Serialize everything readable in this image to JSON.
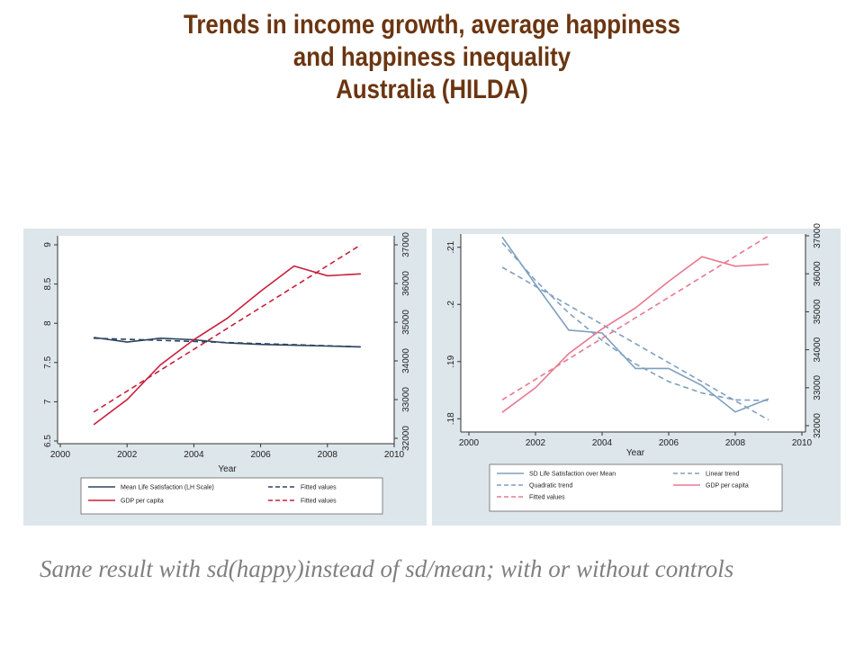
{
  "title": {
    "line1": "Trends in income growth, average happiness",
    "line2": "and happiness inequality",
    "line3": "Australia (HILDA)"
  },
  "caption": "Same result with sd(happy)instead of sd/mean; with or without controls",
  "colors": {
    "title": "#6b3510",
    "navy": "#2c4460",
    "crimson": "#c8203c",
    "steel": "#7f9fbf",
    "pink": "#e8788f",
    "panel": "#dde6eb",
    "caption": "#7f7f7f"
  },
  "chart_data": [
    {
      "type": "line",
      "xlabel": "Year",
      "xlim": [
        2000,
        2010
      ],
      "xticks": [
        "2000",
        "2002",
        "2004",
        "2006",
        "2008",
        "2010"
      ],
      "ylim_left": [
        6.5,
        9
      ],
      "yticks_left": [
        "6.5",
        "7",
        "7.5",
        "8",
        "8.5",
        "9"
      ],
      "ylim_right": [
        32000,
        37000
      ],
      "yticks_right": [
        "32000",
        "33000",
        "34000",
        "35000",
        "36000",
        "37000"
      ],
      "series": [
        {
          "name": "Mean Life Satisfaction (LH Scale)",
          "axis": "left",
          "style": "solid",
          "color": "#2c4460",
          "x": [
            2001,
            2002,
            2003,
            2004,
            2005,
            2006,
            2007,
            2008,
            2009
          ],
          "y": [
            7.82,
            7.76,
            7.81,
            7.79,
            7.75,
            7.73,
            7.72,
            7.71,
            7.7
          ]
        },
        {
          "name": "Fitted values",
          "axis": "left",
          "style": "dashed",
          "color": "#2c4460",
          "x": [
            2001,
            2009
          ],
          "y": [
            7.81,
            7.7
          ]
        },
        {
          "name": "GDP per capita",
          "axis": "right",
          "style": "solid",
          "color": "#c8203c",
          "x": [
            2001,
            2002,
            2003,
            2004,
            2005,
            2006,
            2007,
            2008,
            2009
          ],
          "y": [
            32350,
            33000,
            33900,
            34550,
            35100,
            35800,
            36450,
            36200,
            36250
          ]
        },
        {
          "name": "Fitted values",
          "axis": "right",
          "style": "dashed",
          "color": "#c8203c",
          "x": [
            2001,
            2009
          ],
          "y": [
            32680,
            37000
          ]
        }
      ]
    },
    {
      "type": "line",
      "xlabel": "Year",
      "xlim": [
        2000,
        2010
      ],
      "xticks": [
        "2000",
        "2002",
        "2004",
        "2006",
        "2008",
        "2010"
      ],
      "ylim_left": [
        0.178,
        0.212
      ],
      "yticks_left": [
        ".18",
        ".19",
        ".2",
        ".21"
      ],
      "ylim_right": [
        32000,
        37000
      ],
      "yticks_right": [
        "32000",
        "33000",
        "34000",
        "35000",
        "36000",
        "37000"
      ],
      "series": [
        {
          "name": "SD Life Satisfaction over Mean",
          "axis": "left",
          "style": "solid",
          "color": "#7f9fbf",
          "x": [
            2001,
            2002,
            2003,
            2004,
            2005,
            2006,
            2007,
            2008,
            2009
          ],
          "y": [
            0.2118,
            0.2035,
            0.1955,
            0.195,
            0.1888,
            0.1888,
            0.1858,
            0.1812,
            0.1835
          ]
        },
        {
          "name": "Linear trend",
          "axis": "left",
          "style": "dashed",
          "color": "#7f9fbf",
          "x": [
            2001,
            2009
          ],
          "y": [
            0.2065,
            0.1798
          ]
        },
        {
          "name": "Quadratic trend",
          "axis": "left",
          "style": "dashed",
          "color": "#7f9fbf",
          "x": [
            2001,
            2002,
            2003,
            2004,
            2005,
            2006,
            2007,
            2008,
            2009
          ],
          "y": [
            0.2108,
            0.2042,
            0.1985,
            0.1937,
            0.1896,
            0.1865,
            0.1845,
            0.1833,
            0.1832
          ]
        },
        {
          "name": "GDP per capita",
          "axis": "right",
          "style": "solid",
          "color": "#e8788f",
          "x": [
            2001,
            2002,
            2003,
            2004,
            2005,
            2006,
            2007,
            2008,
            2009
          ],
          "y": [
            32350,
            33000,
            33900,
            34550,
            35100,
            35800,
            36450,
            36200,
            36250
          ]
        },
        {
          "name": "Fitted values",
          "axis": "right",
          "style": "dashed",
          "color": "#e8788f",
          "x": [
            2001,
            2009
          ],
          "y": [
            32680,
            37000
          ]
        }
      ]
    }
  ]
}
